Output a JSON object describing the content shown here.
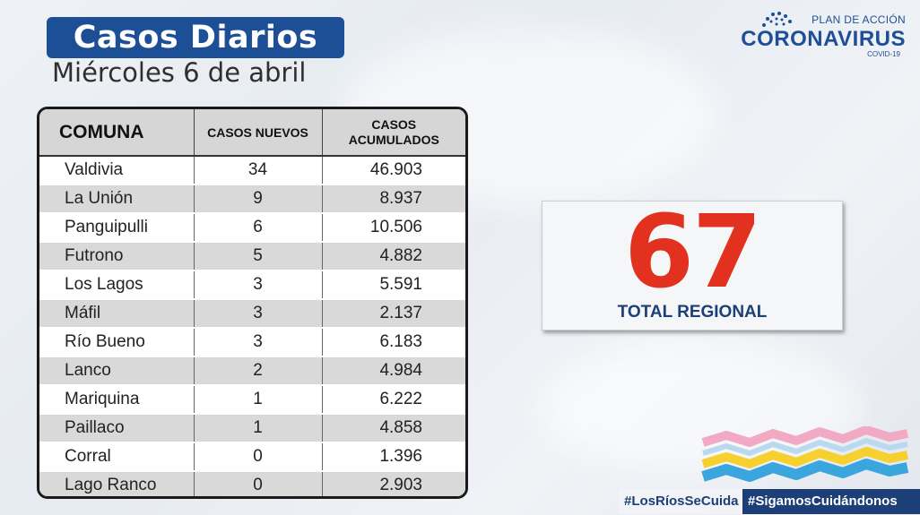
{
  "header": {
    "title": "Casos Diarios",
    "subtitle": "Miércoles 6 de abril"
  },
  "logo": {
    "plan_label": "PLAN DE ACCIÓN",
    "main_label": "CORONAVIRUS",
    "sub_label": "COVID-19"
  },
  "table": {
    "headers": [
      "COMUNA",
      "CASOS NUEVOS",
      "CASOS ACUMULADOS"
    ],
    "rows": [
      {
        "comuna": "Valdivia",
        "nuevos": "34",
        "acumulados": "46.903"
      },
      {
        "comuna": "La Unión",
        "nuevos": "9",
        "acumulados": "8.937"
      },
      {
        "comuna": "Panguipulli",
        "nuevos": "6",
        "acumulados": "10.506"
      },
      {
        "comuna": "Futrono",
        "nuevos": "5",
        "acumulados": "4.882"
      },
      {
        "comuna": "Los Lagos",
        "nuevos": "3",
        "acumulados": "5.591"
      },
      {
        "comuna": "Máfil",
        "nuevos": "3",
        "acumulados": "2.137"
      },
      {
        "comuna": "Río Bueno",
        "nuevos": "3",
        "acumulados": "6.183"
      },
      {
        "comuna": "Lanco",
        "nuevos": "2",
        "acumulados": "4.984"
      },
      {
        "comuna": "Mariquina",
        "nuevos": "1",
        "acumulados": "6.222"
      },
      {
        "comuna": "Paillaco",
        "nuevos": "1",
        "acumulados": "4.858"
      },
      {
        "comuna": "Corral",
        "nuevos": "0",
        "acumulados": "1.396"
      },
      {
        "comuna": "Lago Ranco",
        "nuevos": "0",
        "acumulados": "2.903"
      }
    ]
  },
  "total": {
    "value": "67",
    "label": "TOTAL REGIONAL"
  },
  "hashtags": [
    "#LosRíosSeCuida",
    "#SigamosCuidándonos"
  ],
  "colors": {
    "brand_blue": "#1d4f96",
    "total_red": "#e3311f",
    "wave_pink": "#f2a9c4",
    "wave_yellow": "#f6d02f",
    "wave_blue": "#3aa6dd"
  }
}
